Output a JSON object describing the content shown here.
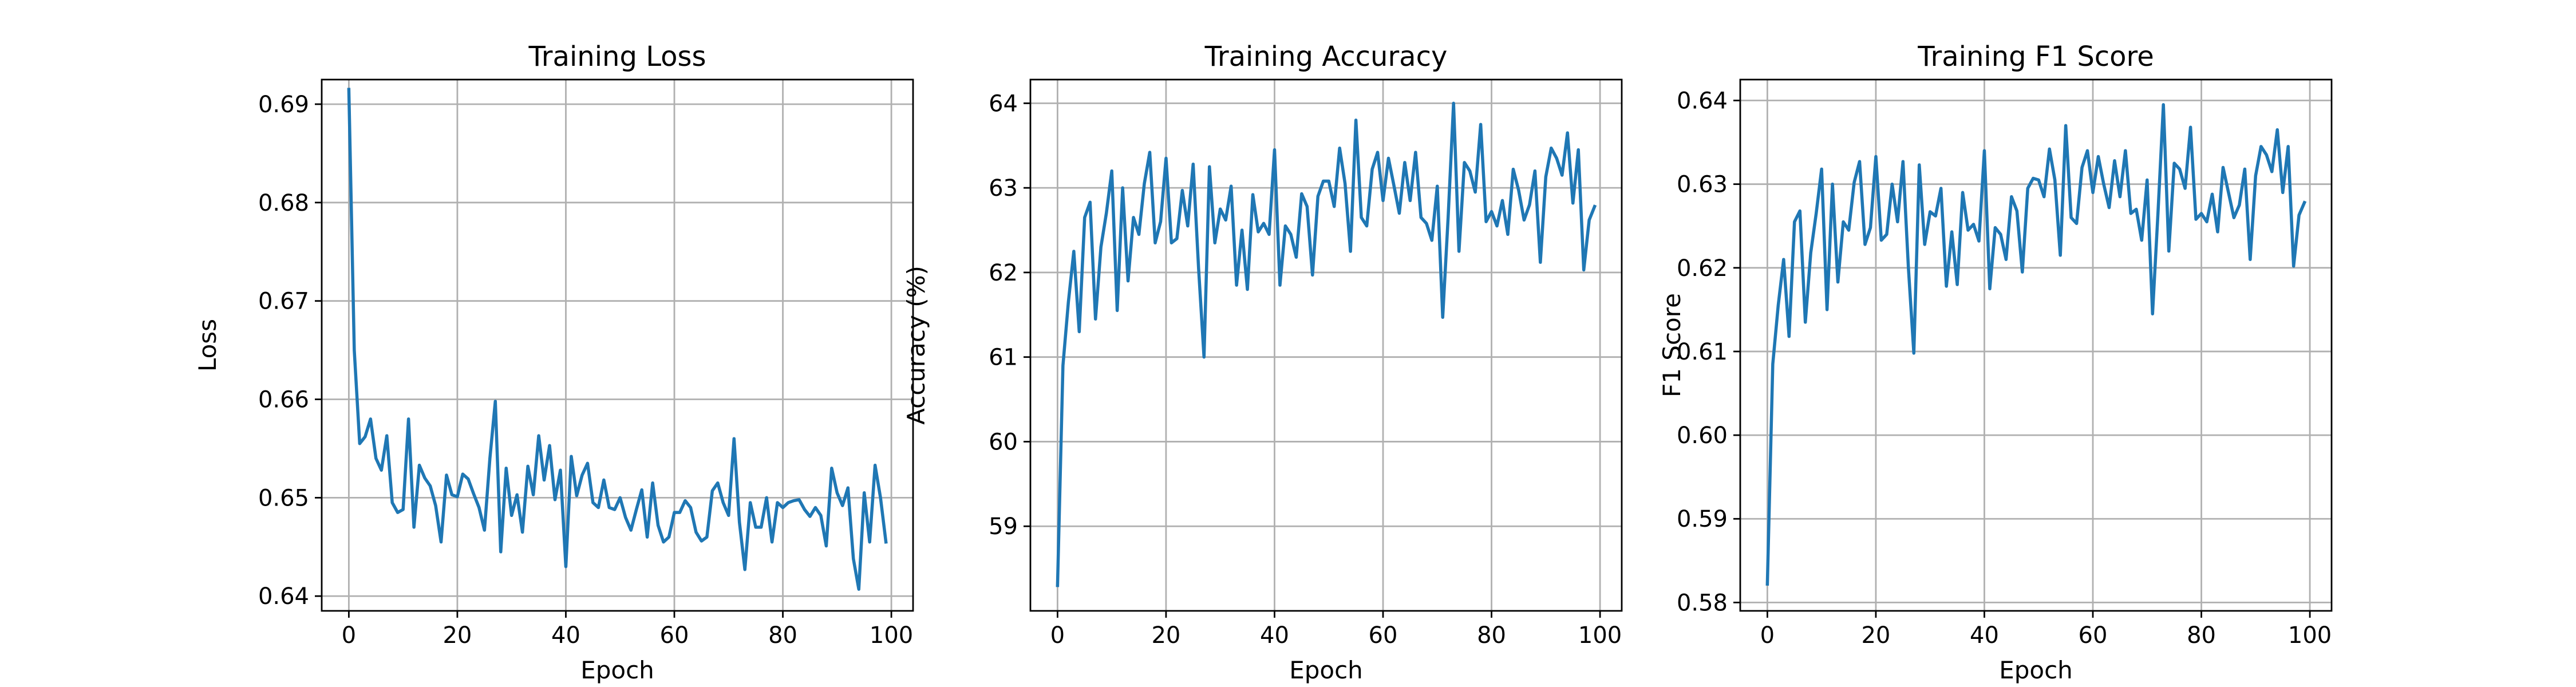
{
  "colors": {
    "series": "#1f77b4",
    "grid": "#b0b0b0"
  },
  "chart_data": [
    {
      "type": "line",
      "title": "Training Loss",
      "xlabel": "Epoch",
      "ylabel": "Loss",
      "xlim": [
        -5,
        104
      ],
      "ylim": [
        0.6385,
        0.6925
      ],
      "xticks": [
        0,
        20,
        40,
        60,
        80,
        100
      ],
      "yticks": [
        0.64,
        0.65,
        0.66,
        0.67,
        0.68,
        0.69
      ],
      "grid": true,
      "x_start": 0,
      "values": [
        0.6915,
        0.665,
        0.6555,
        0.6562,
        0.658,
        0.654,
        0.6528,
        0.6563,
        0.6495,
        0.6485,
        0.6488,
        0.658,
        0.647,
        0.6533,
        0.652,
        0.6512,
        0.6492,
        0.6455,
        0.6523,
        0.6503,
        0.6501,
        0.6524,
        0.6519,
        0.6504,
        0.649,
        0.6467,
        0.654,
        0.6598,
        0.6445,
        0.653,
        0.6482,
        0.6503,
        0.6465,
        0.6532,
        0.6503,
        0.6563,
        0.6518,
        0.6553,
        0.6498,
        0.6528,
        0.643,
        0.6542,
        0.6502,
        0.6523,
        0.6535,
        0.6495,
        0.649,
        0.6518,
        0.649,
        0.6488,
        0.65,
        0.648,
        0.6467,
        0.6488,
        0.6508,
        0.646,
        0.6515,
        0.6472,
        0.6455,
        0.646,
        0.6485,
        0.6485,
        0.6497,
        0.649,
        0.6465,
        0.6456,
        0.646,
        0.6507,
        0.6515,
        0.6495,
        0.6482,
        0.656,
        0.6475,
        0.6427,
        0.6495,
        0.647,
        0.647,
        0.65,
        0.6455,
        0.6495,
        0.649,
        0.6495,
        0.6497,
        0.6498,
        0.6488,
        0.6481,
        0.649,
        0.6482,
        0.6451,
        0.653,
        0.6505,
        0.6492,
        0.651,
        0.6438,
        0.6407,
        0.6505,
        0.6455,
        0.6533,
        0.65,
        0.6455
      ]
    },
    {
      "type": "line",
      "title": "Training Accuracy",
      "xlabel": "Epoch",
      "ylabel": "Accuracy (%)",
      "xlim": [
        -5,
        104
      ],
      "ylim": [
        58.0,
        64.28
      ],
      "xticks": [
        0,
        20,
        40,
        60,
        80,
        100
      ],
      "yticks": [
        59,
        60,
        61,
        62,
        63,
        64
      ],
      "grid": true,
      "x_start": 0,
      "values": [
        58.3,
        60.9,
        61.65,
        62.25,
        61.3,
        62.65,
        62.83,
        61.45,
        62.3,
        62.7,
        63.2,
        61.55,
        63.0,
        61.9,
        62.65,
        62.45,
        63.05,
        63.42,
        62.35,
        62.6,
        63.35,
        62.35,
        62.4,
        62.97,
        62.55,
        63.28,
        62.05,
        61.0,
        63.25,
        62.35,
        62.75,
        62.62,
        63.02,
        61.85,
        62.5,
        61.8,
        62.92,
        62.48,
        62.58,
        62.45,
        63.45,
        61.85,
        62.55,
        62.45,
        62.18,
        62.93,
        62.78,
        61.97,
        62.9,
        63.08,
        63.08,
        62.78,
        63.47,
        63.05,
        62.25,
        63.8,
        62.65,
        62.55,
        63.22,
        63.42,
        62.85,
        63.35,
        63.03,
        62.7,
        63.3,
        62.85,
        63.42,
        62.65,
        62.58,
        62.38,
        63.02,
        61.47,
        62.65,
        64.0,
        62.25,
        63.3,
        63.2,
        62.95,
        63.75,
        62.6,
        62.72,
        62.55,
        62.85,
        62.45,
        63.22,
        62.97,
        62.62,
        62.8,
        63.2,
        62.12,
        63.13,
        63.47,
        63.35,
        63.15,
        63.65,
        62.82,
        63.45,
        62.03,
        62.62,
        62.78
      ]
    },
    {
      "type": "line",
      "title": "Training F1 Score",
      "xlabel": "Epoch",
      "ylabel": "F1 Score",
      "xlim": [
        -5,
        104
      ],
      "ylim": [
        0.579,
        0.6425
      ],
      "xticks": [
        0,
        20,
        40,
        60,
        80,
        100
      ],
      "yticks": [
        0.58,
        0.59,
        0.6,
        0.61,
        0.62,
        0.63,
        0.64
      ],
      "grid": true,
      "x_start": 0,
      "values": [
        0.5822,
        0.6085,
        0.6155,
        0.621,
        0.6118,
        0.6255,
        0.6268,
        0.6135,
        0.6218,
        0.6265,
        0.6318,
        0.615,
        0.63,
        0.6183,
        0.6255,
        0.6245,
        0.6302,
        0.6327,
        0.6228,
        0.6248,
        0.6333,
        0.6233,
        0.624,
        0.63,
        0.6255,
        0.6327,
        0.62,
        0.6098,
        0.6323,
        0.6228,
        0.6267,
        0.6262,
        0.6295,
        0.6178,
        0.6243,
        0.618,
        0.629,
        0.6245,
        0.6252,
        0.6232,
        0.634,
        0.6175,
        0.6248,
        0.624,
        0.621,
        0.6285,
        0.6268,
        0.6195,
        0.6295,
        0.6307,
        0.6305,
        0.6285,
        0.6342,
        0.6305,
        0.6215,
        0.637,
        0.626,
        0.6253,
        0.632,
        0.634,
        0.629,
        0.6333,
        0.63,
        0.6272,
        0.6328,
        0.6285,
        0.634,
        0.6265,
        0.627,
        0.6233,
        0.6305,
        0.6145,
        0.6265,
        0.6395,
        0.622,
        0.6325,
        0.6318,
        0.6295,
        0.6368,
        0.6258,
        0.6265,
        0.6255,
        0.6288,
        0.6243,
        0.632,
        0.629,
        0.626,
        0.6275,
        0.6318,
        0.621,
        0.631,
        0.6345,
        0.6335,
        0.6315,
        0.6365,
        0.629,
        0.6345,
        0.6202,
        0.6263,
        0.6278
      ]
    }
  ]
}
